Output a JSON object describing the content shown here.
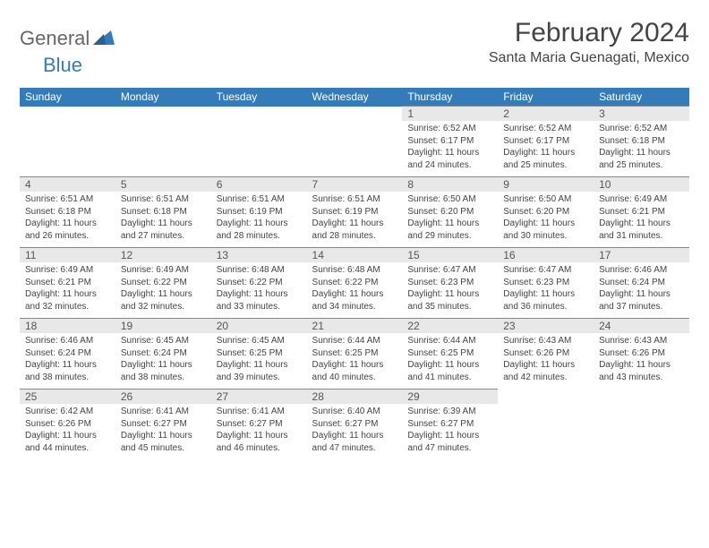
{
  "logo": {
    "text1": "General",
    "text2": "Blue"
  },
  "title": "February 2024",
  "location": "Santa Maria Guenagati, Mexico",
  "colors": {
    "header_bg": "#347bba",
    "header_fg": "#ffffff",
    "daynum_bg": "#e8e8e8",
    "text": "#444444",
    "logo_gray": "#666666",
    "logo_blue": "#347bba"
  },
  "day_headers": [
    "Sunday",
    "Monday",
    "Tuesday",
    "Wednesday",
    "Thursday",
    "Friday",
    "Saturday"
  ],
  "weeks": [
    [
      null,
      null,
      null,
      null,
      {
        "n": "1",
        "sr": "6:52 AM",
        "ss": "6:17 PM",
        "dl": "11 hours and 24 minutes."
      },
      {
        "n": "2",
        "sr": "6:52 AM",
        "ss": "6:17 PM",
        "dl": "11 hours and 25 minutes."
      },
      {
        "n": "3",
        "sr": "6:52 AM",
        "ss": "6:18 PM",
        "dl": "11 hours and 25 minutes."
      }
    ],
    [
      {
        "n": "4",
        "sr": "6:51 AM",
        "ss": "6:18 PM",
        "dl": "11 hours and 26 minutes."
      },
      {
        "n": "5",
        "sr": "6:51 AM",
        "ss": "6:18 PM",
        "dl": "11 hours and 27 minutes."
      },
      {
        "n": "6",
        "sr": "6:51 AM",
        "ss": "6:19 PM",
        "dl": "11 hours and 28 minutes."
      },
      {
        "n": "7",
        "sr": "6:51 AM",
        "ss": "6:19 PM",
        "dl": "11 hours and 28 minutes."
      },
      {
        "n": "8",
        "sr": "6:50 AM",
        "ss": "6:20 PM",
        "dl": "11 hours and 29 minutes."
      },
      {
        "n": "9",
        "sr": "6:50 AM",
        "ss": "6:20 PM",
        "dl": "11 hours and 30 minutes."
      },
      {
        "n": "10",
        "sr": "6:49 AM",
        "ss": "6:21 PM",
        "dl": "11 hours and 31 minutes."
      }
    ],
    [
      {
        "n": "11",
        "sr": "6:49 AM",
        "ss": "6:21 PM",
        "dl": "11 hours and 32 minutes."
      },
      {
        "n": "12",
        "sr": "6:49 AM",
        "ss": "6:22 PM",
        "dl": "11 hours and 32 minutes."
      },
      {
        "n": "13",
        "sr": "6:48 AM",
        "ss": "6:22 PM",
        "dl": "11 hours and 33 minutes."
      },
      {
        "n": "14",
        "sr": "6:48 AM",
        "ss": "6:22 PM",
        "dl": "11 hours and 34 minutes."
      },
      {
        "n": "15",
        "sr": "6:47 AM",
        "ss": "6:23 PM",
        "dl": "11 hours and 35 minutes."
      },
      {
        "n": "16",
        "sr": "6:47 AM",
        "ss": "6:23 PM",
        "dl": "11 hours and 36 minutes."
      },
      {
        "n": "17",
        "sr": "6:46 AM",
        "ss": "6:24 PM",
        "dl": "11 hours and 37 minutes."
      }
    ],
    [
      {
        "n": "18",
        "sr": "6:46 AM",
        "ss": "6:24 PM",
        "dl": "11 hours and 38 minutes."
      },
      {
        "n": "19",
        "sr": "6:45 AM",
        "ss": "6:24 PM",
        "dl": "11 hours and 38 minutes."
      },
      {
        "n": "20",
        "sr": "6:45 AM",
        "ss": "6:25 PM",
        "dl": "11 hours and 39 minutes."
      },
      {
        "n": "21",
        "sr": "6:44 AM",
        "ss": "6:25 PM",
        "dl": "11 hours and 40 minutes."
      },
      {
        "n": "22",
        "sr": "6:44 AM",
        "ss": "6:25 PM",
        "dl": "11 hours and 41 minutes."
      },
      {
        "n": "23",
        "sr": "6:43 AM",
        "ss": "6:26 PM",
        "dl": "11 hours and 42 minutes."
      },
      {
        "n": "24",
        "sr": "6:43 AM",
        "ss": "6:26 PM",
        "dl": "11 hours and 43 minutes."
      }
    ],
    [
      {
        "n": "25",
        "sr": "6:42 AM",
        "ss": "6:26 PM",
        "dl": "11 hours and 44 minutes."
      },
      {
        "n": "26",
        "sr": "6:41 AM",
        "ss": "6:27 PM",
        "dl": "11 hours and 45 minutes."
      },
      {
        "n": "27",
        "sr": "6:41 AM",
        "ss": "6:27 PM",
        "dl": "11 hours and 46 minutes."
      },
      {
        "n": "28",
        "sr": "6:40 AM",
        "ss": "6:27 PM",
        "dl": "11 hours and 47 minutes."
      },
      {
        "n": "29",
        "sr": "6:39 AM",
        "ss": "6:27 PM",
        "dl": "11 hours and 47 minutes."
      },
      null,
      null
    ]
  ],
  "labels": {
    "sunrise": "Sunrise:",
    "sunset": "Sunset:",
    "daylight": "Daylight:"
  }
}
